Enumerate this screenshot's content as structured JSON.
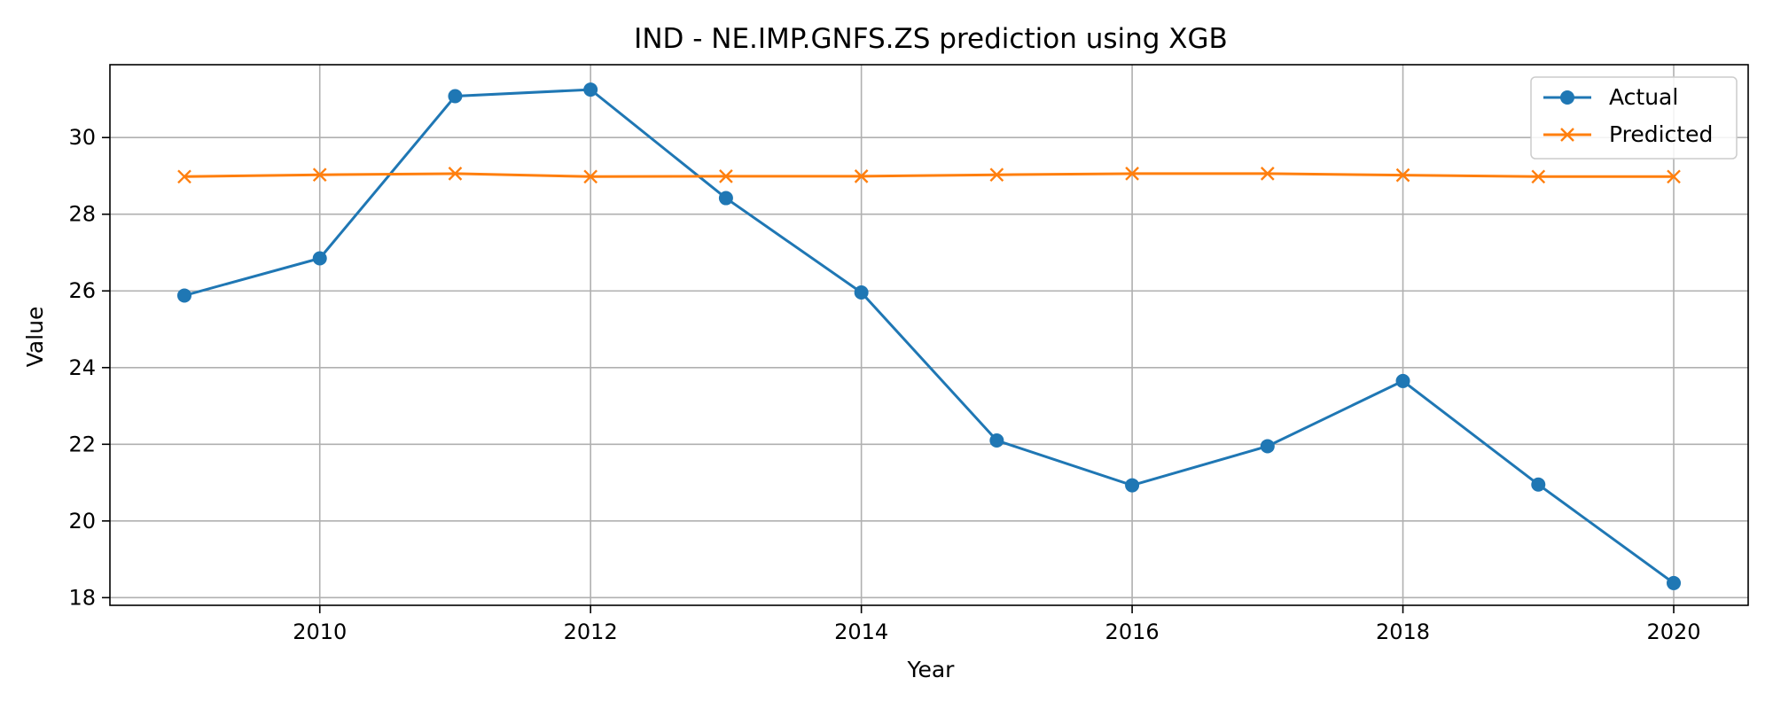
{
  "chart_data": {
    "type": "line",
    "title": "IND - NE.IMP.GNFS.ZS prediction using XGB",
    "xlabel": "Year",
    "ylabel": "Value",
    "x": [
      2009,
      2010,
      2011,
      2012,
      2013,
      2014,
      2015,
      2016,
      2017,
      2018,
      2019,
      2020
    ],
    "xlim": [
      2008.45,
      2020.55
    ],
    "ylim": [
      17.8,
      31.9
    ],
    "xticks": [
      2010,
      2012,
      2014,
      2016,
      2018,
      2020
    ],
    "yticks": [
      18,
      20,
      22,
      24,
      26,
      28,
      30
    ],
    "grid": true,
    "legend_position": "upper right",
    "series": [
      {
        "name": "Actual",
        "color": "#1f77b4",
        "marker": "circle",
        "values": [
          25.88,
          26.85,
          31.08,
          31.25,
          28.42,
          25.96,
          22.1,
          20.93,
          21.95,
          23.65,
          20.95,
          18.38
        ]
      },
      {
        "name": "Predicted",
        "color": "#ff7f0e",
        "marker": "x",
        "values": [
          28.98,
          29.03,
          29.06,
          28.98,
          28.99,
          28.99,
          29.03,
          29.06,
          29.06,
          29.02,
          28.98,
          28.98
        ]
      }
    ]
  }
}
